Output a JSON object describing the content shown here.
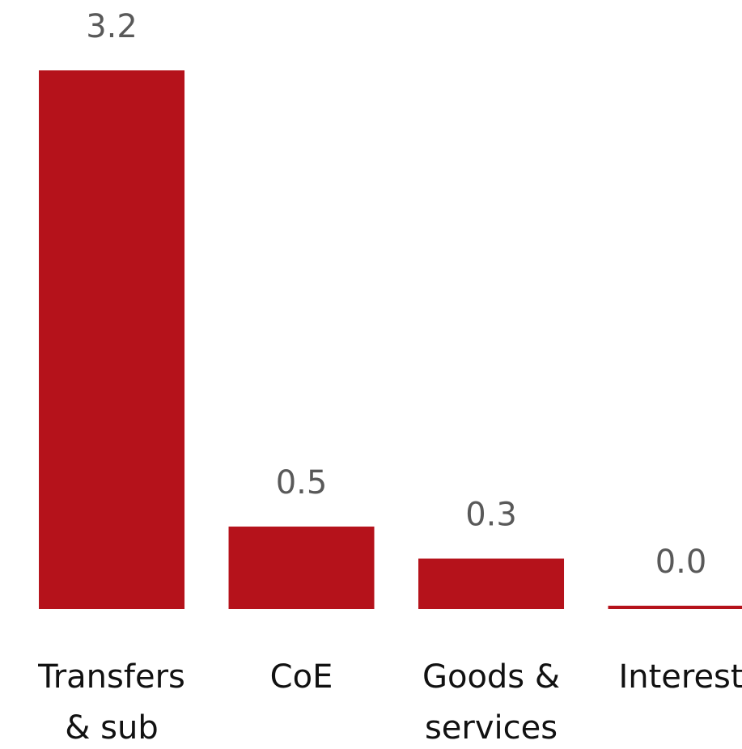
{
  "chart_data": {
    "type": "bar",
    "categories": [
      "Transfers & sub",
      "CoE",
      "Goods & services",
      "Interest"
    ],
    "values": [
      3.2,
      0.49,
      0.3,
      0.02
    ],
    "value_labels": [
      "3.2",
      "0.5",
      "0.3",
      "0.0"
    ],
    "color": "#b5121b",
    "ylim": [
      0,
      3.2
    ]
  }
}
